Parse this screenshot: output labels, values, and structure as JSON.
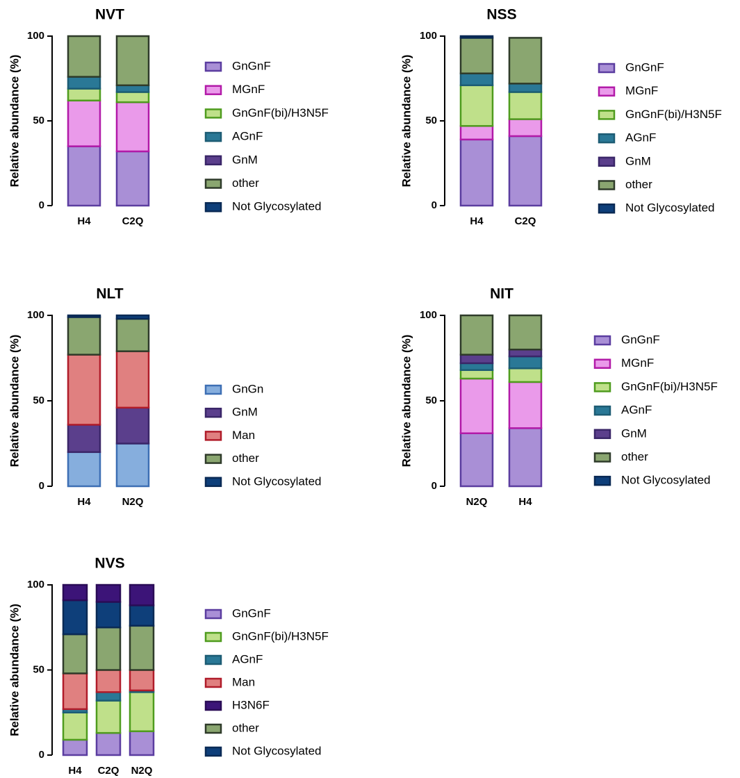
{
  "colors": {
    "GnGnF": {
      "fill": "#a98fd6",
      "stroke": "#5b3da0"
    },
    "MGnF": {
      "fill": "#ea9aea",
      "stroke": "#b21aa8"
    },
    "GnGnF(bi)/H3N5F": {
      "fill": "#bfe08a",
      "stroke": "#4f9c1e"
    },
    "AGnF": {
      "fill": "#2a7896",
      "stroke": "#1d5c74"
    },
    "GnM": {
      "fill": "#5b3f8c",
      "stroke": "#3a2668"
    },
    "other": {
      "fill": "#8aa670",
      "stroke": "#2f3b2a"
    },
    "Not Glycosylated": {
      "fill": "#0e3f7a",
      "stroke": "#0a2a55"
    },
    "GnGn": {
      "fill": "#86aedd",
      "stroke": "#3d6fb4"
    },
    "Man": {
      "fill": "#e08080",
      "stroke": "#b01c2a"
    },
    "H3N6F": {
      "fill": "#3c1478",
      "stroke": "#2a0c56"
    }
  },
  "chart_data": [
    {
      "type": "bar",
      "stacked": true,
      "title": "NVT",
      "ylabel": "Relative abundance (%)",
      "xlabel": "",
      "ylim": [
        0,
        100
      ],
      "yticks": [
        0,
        50,
        100
      ],
      "categories": [
        "H4",
        "C2Q"
      ],
      "legend": [
        "GnGnF",
        "MGnF",
        "GnGnF(bi)/H3N5F",
        "AGnF",
        "GnM",
        "other",
        "Not Glycosylated"
      ],
      "series": [
        {
          "name": "GnGnF",
          "values": [
            35,
            32
          ]
        },
        {
          "name": "MGnF",
          "values": [
            27,
            29
          ]
        },
        {
          "name": "GnGnF(bi)/H3N5F",
          "values": [
            7,
            6
          ]
        },
        {
          "name": "AGnF",
          "values": [
            7,
            4
          ]
        },
        {
          "name": "GnM",
          "values": [
            0,
            0
          ]
        },
        {
          "name": "other",
          "values": [
            24,
            29
          ]
        },
        {
          "name": "Not Glycosylated",
          "values": [
            0,
            0
          ]
        }
      ]
    },
    {
      "type": "bar",
      "stacked": true,
      "title": "NSS",
      "ylabel": "Relative abundance (%)",
      "xlabel": "",
      "ylim": [
        0,
        100
      ],
      "yticks": [
        0,
        50,
        100
      ],
      "categories": [
        "H4",
        "C2Q"
      ],
      "legend": [
        "GnGnF",
        "MGnF",
        "GnGnF(bi)/H3N5F",
        "AGnF",
        "GnM",
        "other",
        "Not Glycosylated"
      ],
      "series": [
        {
          "name": "GnGnF",
          "values": [
            39,
            41
          ]
        },
        {
          "name": "MGnF",
          "values": [
            8,
            10
          ]
        },
        {
          "name": "GnGnF(bi)/H3N5F",
          "values": [
            24,
            16
          ]
        },
        {
          "name": "AGnF",
          "values": [
            7,
            5
          ]
        },
        {
          "name": "GnM",
          "values": [
            0,
            0
          ]
        },
        {
          "name": "other",
          "values": [
            21,
            27
          ]
        },
        {
          "name": "Not Glycosylated",
          "values": [
            1,
            0
          ]
        }
      ]
    },
    {
      "type": "bar",
      "stacked": true,
      "title": "NLT",
      "ylabel": "Relative abundance (%)",
      "xlabel": "",
      "ylim": [
        0,
        100
      ],
      "yticks": [
        0,
        50,
        100
      ],
      "categories": [
        "H4",
        "N2Q"
      ],
      "legend": [
        "GnGn",
        "GnM",
        "Man",
        "other",
        "Not Glycosylated"
      ],
      "series": [
        {
          "name": "GnGn",
          "values": [
            20,
            25
          ]
        },
        {
          "name": "GnM",
          "values": [
            16,
            21
          ]
        },
        {
          "name": "Man",
          "values": [
            41,
            33
          ]
        },
        {
          "name": "other",
          "values": [
            22,
            19
          ]
        },
        {
          "name": "Not Glycosylated",
          "values": [
            1,
            2
          ]
        }
      ]
    },
    {
      "type": "bar",
      "stacked": true,
      "title": "NIT",
      "ylabel": "Relative abundance (%)",
      "xlabel": "",
      "ylim": [
        0,
        100
      ],
      "yticks": [
        0,
        50,
        100
      ],
      "categories": [
        "N2Q",
        "H4"
      ],
      "legend": [
        "GnGnF",
        "MGnF",
        "GnGnF(bi)/H3N5F",
        "AGnF",
        "GnM",
        "other",
        "Not Glycosylated"
      ],
      "series": [
        {
          "name": "GnGnF",
          "values": [
            31,
            34
          ]
        },
        {
          "name": "MGnF",
          "values": [
            32,
            27
          ]
        },
        {
          "name": "GnGnF(bi)/H3N5F",
          "values": [
            5,
            8
          ]
        },
        {
          "name": "AGnF",
          "values": [
            4,
            7
          ]
        },
        {
          "name": "GnM",
          "values": [
            5,
            4
          ]
        },
        {
          "name": "other",
          "values": [
            23,
            20
          ]
        },
        {
          "name": "Not Glycosylated",
          "values": [
            0,
            0
          ]
        }
      ]
    },
    {
      "type": "bar",
      "stacked": true,
      "title": "NVS",
      "ylabel": "Relative abundance (%)",
      "xlabel": "",
      "ylim": [
        0,
        100
      ],
      "yticks": [
        0,
        50,
        100
      ],
      "categories": [
        "H4",
        "C2Q",
        "N2Q"
      ],
      "legend": [
        "GnGnF",
        "GnGnF(bi)/H3N5F",
        "AGnF",
        "Man",
        "H3N6F",
        "other",
        "Not Glycosylated"
      ],
      "series": [
        {
          "name": "GnGnF",
          "values": [
            9,
            13,
            14
          ]
        },
        {
          "name": "GnGnF(bi)/H3N5F",
          "values": [
            16,
            19,
            23
          ]
        },
        {
          "name": "AGnF",
          "values": [
            2,
            5,
            1
          ]
        },
        {
          "name": "Man",
          "values": [
            21,
            13,
            12
          ]
        },
        {
          "name": "other",
          "values": [
            23,
            25,
            26
          ]
        },
        {
          "name": "Not Glycosylated",
          "values": [
            20,
            15,
            12
          ]
        },
        {
          "name": "H3N6F",
          "values": [
            9,
            10,
            12
          ]
        }
      ]
    }
  ]
}
